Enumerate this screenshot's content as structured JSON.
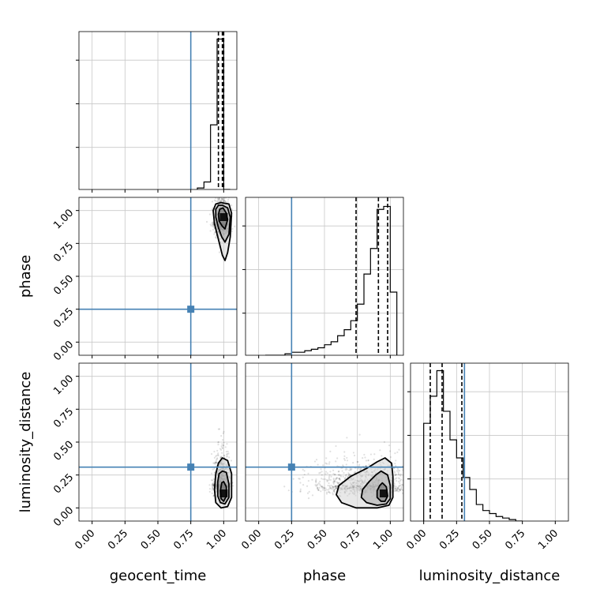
{
  "chart_data": {
    "type": "corner",
    "parameters": [
      "geocent_time",
      "phase",
      "luminosity_distance"
    ],
    "axis_range": [
      -0.1,
      1.1
    ],
    "tick_values": [
      0.0,
      0.25,
      0.5,
      0.75,
      1.0
    ],
    "tick_labels": [
      "0.00",
      "0.25",
      "0.50",
      "0.75",
      "1.00"
    ],
    "grid": true,
    "truth": {
      "geocent_time": 0.75,
      "phase": 0.25,
      "luminosity_distance": 0.31
    },
    "truth_color": "#4682b4",
    "histograms": {
      "geocent_time": {
        "bin_edges": [
          0.8,
          0.85,
          0.9,
          0.95,
          1.0,
          1.05
        ],
        "density": [
          0.01,
          0.05,
          0.43,
          1.0,
          0.0
        ],
        "quantiles": [
          0.96,
          0.99,
          1.0
        ]
      },
      "phase": {
        "bin_edges": [
          0.05,
          0.1,
          0.15,
          0.2,
          0.25,
          0.3,
          0.35,
          0.4,
          0.45,
          0.5,
          0.55,
          0.6,
          0.65,
          0.7,
          0.75,
          0.8,
          0.85,
          0.9,
          0.95,
          1.0,
          1.05
        ],
        "density": [
          0.0,
          0.0,
          0.0,
          0.01,
          0.02,
          0.02,
          0.03,
          0.04,
          0.05,
          0.07,
          0.09,
          0.13,
          0.17,
          0.23,
          0.34,
          0.54,
          0.71,
          0.97,
          0.99,
          0.42
        ],
        "quantiles": [
          0.74,
          0.91,
          0.98
        ]
      },
      "luminosity_distance": {
        "bin_edges": [
          0.0,
          0.05,
          0.1,
          0.15,
          0.2,
          0.25,
          0.3,
          0.35,
          0.4,
          0.45,
          0.5,
          0.55,
          0.6,
          0.65,
          0.7,
          0.75
        ],
        "density": [
          0.65,
          0.83,
          1.0,
          0.73,
          0.54,
          0.42,
          0.29,
          0.21,
          0.11,
          0.07,
          0.05,
          0.03,
          0.02,
          0.01,
          0.0
        ],
        "quantiles": [
          0.05,
          0.14,
          0.29
        ]
      }
    },
    "pairs": [
      {
        "x": "geocent_time",
        "y": "phase",
        "scatter_center": [
          0.985,
          0.9
        ],
        "scatter_spread": [
          0.03,
          0.18
        ],
        "contours": [
          [
            [
              0.995,
              1.02
            ],
            [
              1.02,
              0.98
            ],
            [
              1.03,
              0.93
            ],
            [
              1.01,
              0.86
            ],
            [
              0.99,
              0.88
            ],
            [
              0.965,
              0.92
            ],
            [
              0.96,
              0.97
            ],
            [
              0.97,
              1.01
            ]
          ],
          [
            [
              0.99,
              1.04
            ],
            [
              1.03,
              1.02
            ],
            [
              1.05,
              0.95
            ],
            [
              1.04,
              0.82
            ],
            [
              1.01,
              0.76
            ],
            [
              0.985,
              0.8
            ],
            [
              0.96,
              0.87
            ],
            [
              0.94,
              0.95
            ],
            [
              0.94,
              1.01
            ],
            [
              0.96,
              1.04
            ]
          ],
          [
            [
              0.98,
              1.06
            ],
            [
              1.04,
              1.05
            ],
            [
              1.06,
              0.98
            ],
            [
              1.05,
              0.8
            ],
            [
              1.03,
              0.68
            ],
            [
              1.01,
              0.62
            ],
            [
              0.99,
              0.66
            ],
            [
              0.96,
              0.78
            ],
            [
              0.93,
              0.9
            ],
            [
              0.92,
              1.0
            ],
            [
              0.94,
              1.05
            ]
          ]
        ],
        "density_peak": [
          1.0,
          0.95
        ]
      },
      {
        "x": "geocent_time",
        "y": "luminosity_distance",
        "scatter_center": [
          0.985,
          0.18
        ],
        "scatter_spread": [
          0.03,
          0.15
        ],
        "contours": [
          [
            [
              1.0,
              0.2
            ],
            [
              1.02,
              0.16
            ],
            [
              1.02,
              0.09
            ],
            [
              1.0,
              0.05
            ],
            [
              0.98,
              0.07
            ],
            [
              0.975,
              0.13
            ],
            [
              0.985,
              0.19
            ]
          ],
          [
            [
              0.99,
              0.28
            ],
            [
              1.02,
              0.27
            ],
            [
              1.04,
              0.18
            ],
            [
              1.04,
              0.08
            ],
            [
              1.01,
              0.03
            ],
            [
              0.975,
              0.04
            ],
            [
              0.955,
              0.09
            ],
            [
              0.955,
              0.2
            ],
            [
              0.965,
              0.26
            ]
          ],
          [
            [
              0.99,
              0.38
            ],
            [
              1.03,
              0.36
            ],
            [
              1.06,
              0.26
            ],
            [
              1.06,
              0.08
            ],
            [
              1.03,
              0.01
            ],
            [
              0.98,
              0.0
            ],
            [
              0.94,
              0.04
            ],
            [
              0.93,
              0.14
            ],
            [
              0.94,
              0.26
            ],
            [
              0.96,
              0.34
            ]
          ]
        ],
        "density_peak": [
          1.0,
          0.11
        ]
      },
      {
        "x": "phase",
        "y": "luminosity_distance",
        "scatter_center": [
          0.8,
          0.17
        ],
        "scatter_spread": [
          0.2,
          0.14
        ],
        "contours": [
          [
            [
              0.94,
              0.19
            ],
            [
              0.97,
              0.16
            ],
            [
              0.98,
              0.09
            ],
            [
              0.96,
              0.05
            ],
            [
              0.93,
              0.05
            ],
            [
              0.9,
              0.08
            ],
            [
              0.9,
              0.13
            ],
            [
              0.92,
              0.17
            ]
          ],
          [
            [
              0.93,
              0.28
            ],
            [
              0.98,
              0.25
            ],
            [
              1.0,
              0.17
            ],
            [
              1.0,
              0.07
            ],
            [
              0.97,
              0.03
            ],
            [
              0.9,
              0.02
            ],
            [
              0.82,
              0.04
            ],
            [
              0.78,
              0.08
            ],
            [
              0.79,
              0.14
            ],
            [
              0.84,
              0.2
            ],
            [
              0.89,
              0.25
            ]
          ],
          [
            [
              0.96,
              0.38
            ],
            [
              1.01,
              0.34
            ],
            [
              1.02,
              0.24
            ],
            [
              1.02,
              0.08
            ],
            [
              0.99,
              0.02
            ],
            [
              0.9,
              0.0
            ],
            [
              0.74,
              0.0
            ],
            [
              0.63,
              0.04
            ],
            [
              0.59,
              0.1
            ],
            [
              0.61,
              0.17
            ],
            [
              0.7,
              0.24
            ],
            [
              0.82,
              0.3
            ],
            [
              0.9,
              0.35
            ]
          ]
        ],
        "density_peak": [
          0.95,
          0.11
        ]
      }
    ]
  }
}
